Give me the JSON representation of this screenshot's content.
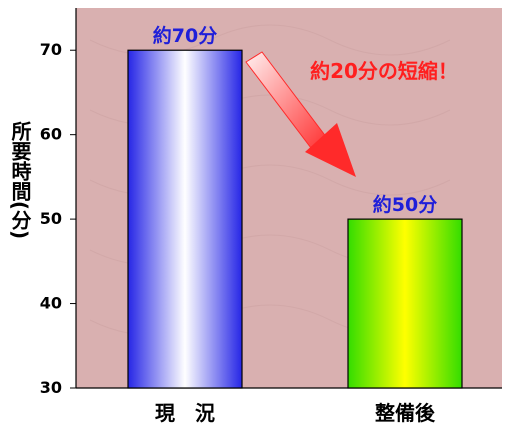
{
  "chart_data": {
    "type": "bar",
    "ylabel": "所要時間(分)",
    "ylim": [
      30,
      75
    ],
    "yticks": [
      "30",
      "40",
      "50",
      "60",
      "70"
    ],
    "categories": [
      "現　況",
      "整備後"
    ],
    "values": [
      70,
      50
    ],
    "data_labels": [
      "約70分",
      "約50分"
    ],
    "annotation": "約20分の短縮！",
    "grid": false,
    "colors": {
      "plot_background": "#d9b0b0",
      "bar1_edge": "#2626e6",
      "bar1_center": "#ffffff",
      "bar2_edge": "#33dd00",
      "bar2_center": "#ffff00",
      "label_blue": "#1f1fd9",
      "annotation_red": "#ff1f1f",
      "arrow_red": "#ff2a2a"
    }
  }
}
